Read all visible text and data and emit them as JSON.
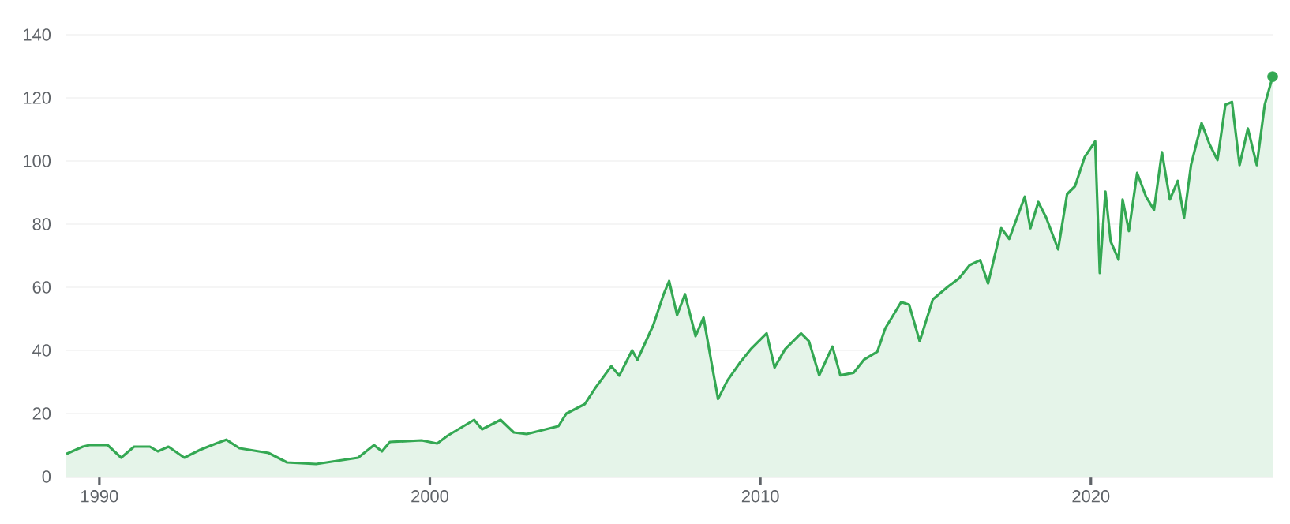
{
  "chart_data": {
    "type": "area",
    "grid": "y",
    "xlim": [
      1989.0,
      2025.5
    ],
    "ylim": [
      0,
      140
    ],
    "xticks": [
      1990,
      2000,
      2010,
      2020
    ],
    "yticks": [
      0,
      20,
      40,
      60,
      80,
      100,
      120,
      140
    ],
    "series": [
      {
        "color": "#34a853",
        "x": [
          1989.0,
          1989.5,
          1989.7,
          1990.25,
          1990.66,
          1991.05,
          1991.53,
          1991.77,
          1992.09,
          1992.57,
          1993.05,
          1993.53,
          1993.84,
          1994.24,
          1995.12,
          1995.68,
          1996.56,
          1997.19,
          1997.83,
          1998.31,
          1998.55,
          1998.79,
          1999.75,
          2000.22,
          2000.54,
          2001.34,
          2001.58,
          2002.14,
          2002.54,
          2002.93,
          2003.89,
          2004.13,
          2004.69,
          2005.0,
          2005.49,
          2005.73,
          2006.12,
          2006.28,
          2006.76,
          2007.08,
          2007.24,
          2007.48,
          2007.72,
          2008.04,
          2008.28,
          2008.52,
          2008.72,
          2009.0,
          2009.39,
          2009.71,
          2010.19,
          2010.43,
          2010.75,
          2011.23,
          2011.47,
          2011.78,
          2012.18,
          2012.42,
          2012.82,
          2013.14,
          2013.54,
          2013.78,
          2014.26,
          2014.5,
          2014.82,
          2015.22,
          2015.69,
          2016.01,
          2016.33,
          2016.65,
          2016.89,
          2017.29,
          2017.53,
          2018.0,
          2018.17,
          2018.41,
          2018.65,
          2019.01,
          2019.28,
          2019.52,
          2019.81,
          2020.13,
          2020.27,
          2020.44,
          2020.6,
          2020.84,
          2020.96,
          2021.15,
          2021.4,
          2021.67,
          2021.91,
          2022.15,
          2022.39,
          2022.63,
          2022.82,
          2023.03,
          2023.35,
          2023.59,
          2023.83,
          2024.07,
          2024.27,
          2024.5,
          2024.75,
          2025.02,
          2025.26,
          2025.5
        ],
        "values": [
          7.2,
          9.5,
          10,
          10,
          6,
          9.5,
          9.5,
          8,
          9.5,
          6,
          8.5,
          10.5,
          11.7,
          9,
          7.5,
          4.5,
          4,
          5,
          6,
          10,
          8,
          11,
          11.5,
          10.5,
          13,
          18,
          15,
          18,
          14,
          13.5,
          16,
          20,
          23,
          28,
          35,
          32,
          40,
          37,
          48,
          58,
          62,
          51.2,
          57.8,
          44.5,
          50.4,
          36.2,
          24.6,
          30.4,
          36.2,
          40.4,
          45.4,
          34.6,
          40.4,
          45.4,
          42.9,
          32.1,
          41.2,
          32.1,
          32.9,
          37.1,
          39.6,
          47,
          55.3,
          54.5,
          42.9,
          56.2,
          60.3,
          62.8,
          67,
          68.6,
          61.2,
          78.7,
          75.3,
          88.7,
          78.7,
          87,
          82,
          72,
          89.5,
          92,
          101.2,
          106.2,
          64.5,
          90.3,
          74.5,
          68.7,
          87.8,
          77.8,
          96.2,
          88.7,
          84.5,
          102.8,
          87.8,
          93.7,
          82,
          98.7,
          112,
          105.3,
          100.3,
          117.8,
          118.7,
          98.7,
          110.3,
          98.7,
          117.8,
          126.7
        ]
      },
      {
        "type": "scatter",
        "color": "#34a853",
        "marker": "circle",
        "x": [
          2025.5
        ],
        "values": [
          126.7
        ]
      }
    ]
  }
}
